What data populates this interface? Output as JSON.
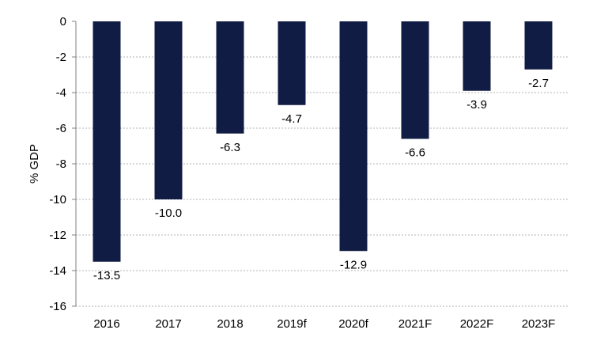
{
  "chart_data": {
    "type": "bar",
    "categories": [
      "2016",
      "2017",
      "2018",
      "2019f",
      "2020f",
      "2021F",
      "2022F",
      "2023F"
    ],
    "values": [
      -13.5,
      -10.0,
      -6.3,
      -4.7,
      -12.9,
      -6.6,
      -3.9,
      -2.7
    ],
    "data_labels": [
      "-13.5",
      "-10.0",
      "-6.3",
      "-4.7",
      "-12.9",
      "-6.6",
      "-3.9",
      "-2.7"
    ],
    "title": "",
    "xlabel": "",
    "ylabel": "% GDP",
    "ylim": [
      -16,
      0
    ],
    "yticks": [
      0,
      -2,
      -4,
      -6,
      -8,
      -10,
      -12,
      -14,
      -16
    ],
    "ytick_labels": [
      "0",
      "-2",
      "-4",
      "-6",
      "-8",
      "-10",
      "-12",
      "-14",
      "-16"
    ],
    "grid": true,
    "bar_color": "#111c44"
  }
}
